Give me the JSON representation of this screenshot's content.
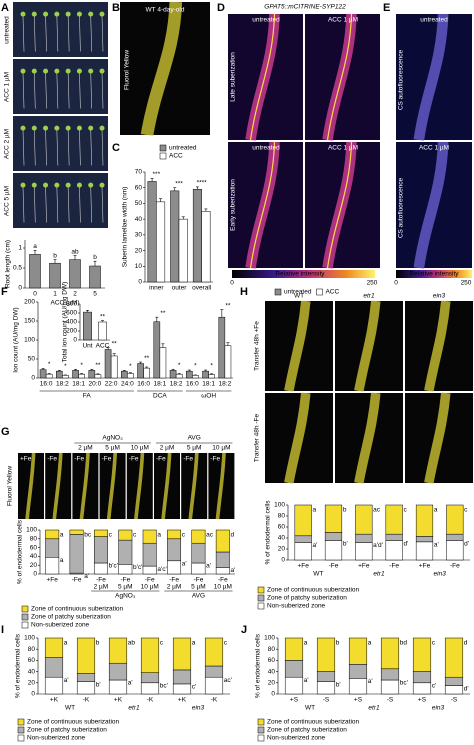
{
  "A": {
    "label": "A",
    "image_labels": [
      "untreated",
      "ACC 1 µM",
      "ACC 2 µM",
      "ACC 5 µM"
    ],
    "chart": {
      "type": "bar",
      "ylabel": "Root length (cm)",
      "xlabel": "ACC (µM)",
      "categories": [
        "0",
        "1",
        "2",
        "5"
      ],
      "values": [
        0.84,
        0.62,
        0.71,
        0.55
      ],
      "errors": [
        0.1,
        0.09,
        0.1,
        0.12
      ],
      "letters": [
        "a",
        "b",
        "ab",
        "b"
      ],
      "color": "#8c8c8c",
      "ylim": [
        0,
        1.2
      ],
      "yticks": [
        0,
        0.5,
        1
      ]
    }
  },
  "B": {
    "label": "B",
    "title": "WT 4-day-old",
    "ylabel": "Fluorol Yellow"
  },
  "C": {
    "label": "C",
    "chart": {
      "type": "bar",
      "ylabel": "Suberin lamellae width (nm)",
      "categories": [
        "inner",
        "outer",
        "overall"
      ],
      "series": [
        {
          "name": "untreated",
          "color": "#8c8c8c",
          "values": [
            64,
            58,
            59
          ],
          "errors": [
            2,
            2,
            1.5
          ]
        },
        {
          "name": "ACC",
          "color": "#ffffff",
          "values": [
            51,
            40,
            45
          ],
          "errors": [
            2,
            1.5,
            1.5
          ]
        }
      ],
      "stars": [
        "***",
        "***",
        "****"
      ],
      "ylim": [
        0,
        70
      ],
      "yticks": [
        0,
        10,
        20,
        30,
        40,
        50,
        60,
        70
      ]
    }
  },
  "D": {
    "label": "D",
    "title": "GPAT5::mCITRINE-SYP122",
    "column_labels": [
      "untreated",
      "ACC 1 µM"
    ],
    "row_labels": [
      "Late suberization",
      "Early suberization"
    ],
    "colorbar": {
      "label": "Relative intensity",
      "ticks": [
        "0",
        "250"
      ]
    }
  },
  "E": {
    "label": "E",
    "image_labels": [
      "untreated",
      "ACC 1 µM"
    ],
    "row_labels": [
      "CS autofluorescence",
      "CS autofluorescence"
    ],
    "colorbar": {
      "label": "Relative intensity",
      "ticks": [
        "0",
        "250"
      ]
    }
  },
  "F": {
    "label": "F",
    "chart": {
      "type": "bar",
      "ylabel": "Ion count (AU/mg DW)",
      "categories": [
        "16:0",
        "18:2",
        "18:1",
        "20:0",
        "22:0",
        "24:0",
        "16:0",
        "18:1",
        "18:2",
        "16:0",
        "18:1",
        "18:2"
      ],
      "group_labels": [
        "FA",
        "DCA",
        "ωOH"
      ],
      "series": [
        {
          "name": "untreated",
          "color": "#8c8c8c",
          "values": [
            22,
            18,
            20,
            20,
            75,
            18,
            38,
            148,
            20,
            18,
            18,
            160
          ],
          "errors": [
            3,
            2,
            3,
            3,
            5,
            2,
            4,
            12,
            3,
            3,
            3,
            20
          ]
        },
        {
          "name": "ACC",
          "color": "#ffffff",
          "values": [
            10,
            7,
            10,
            9,
            58,
            12,
            26,
            80,
            10,
            7,
            9,
            85
          ],
          "errors": [
            2,
            1,
            2,
            2,
            6,
            2,
            3,
            10,
            2,
            1,
            2,
            8
          ]
        }
      ],
      "stars": [
        "*",
        "*",
        "*",
        "**",
        "**",
        "*",
        "**",
        "**",
        "*",
        "*",
        "*",
        "**"
      ],
      "ylim": [
        0,
        200
      ],
      "yticks": [
        0,
        50,
        100,
        150,
        200
      ]
    },
    "inset": {
      "type": "bar",
      "ylabel": "Total ion count (AU/mg DW)",
      "categories": [
        "Unt",
        "ACC"
      ],
      "values": [
        620,
        400
      ],
      "errors": [
        40,
        30
      ],
      "colors": [
        "#8c8c8c",
        "#ffffff"
      ],
      "star": "**",
      "ylim": [
        0,
        800
      ],
      "yticks": [
        0,
        200,
        400,
        600,
        800
      ]
    }
  },
  "G": {
    "label": "G",
    "ylabel": "Fluorol Yellow",
    "image_labels": [
      "+Fe",
      "-Fe",
      "-Fe",
      "-Fe",
      "-Fe",
      "-Fe",
      "-Fe",
      "-Fe"
    ],
    "image_sublabels": [
      "2 µM",
      "5 µM",
      "10 µM",
      "2 µM",
      "5 µM",
      "10 µM"
    ],
    "image_group_labels": [
      "AgNO₃",
      "AVG"
    ],
    "chart": {
      "type": "stacked-bar",
      "ylabel": "% of endodermal cells",
      "categories": [
        "+Fe",
        "-Fe",
        "-Fe",
        "-Fe",
        "-Fe",
        "-Fe",
        "-Fe",
        "-Fe"
      ],
      "sublabels": [
        null,
        null,
        "2 µM",
        "5 µM",
        "10 µM",
        "2 µM",
        "5 µM",
        "10 µM"
      ],
      "group_labels": [
        "AgNO₃",
        "AVG"
      ],
      "series": [
        {
          "name": "Non-suberized zone",
          "color": "#ffffff",
          "values": [
            38,
            2,
            25,
            22,
            18,
            30,
            25,
            15
          ]
        },
        {
          "name": "Zone of patchy suberization",
          "color": "#b0b0b0",
          "values": [
            42,
            88,
            60,
            55,
            52,
            50,
            45,
            35
          ]
        },
        {
          "name": "Zone of continuous suberization",
          "color": "#f3dc2e",
          "values": [
            20,
            10,
            15,
            23,
            30,
            20,
            30,
            50
          ]
        }
      ],
      "letters_top": [
        "a",
        "bc",
        "c",
        "c",
        "a",
        "c",
        "ac",
        "d"
      ],
      "letters_bottom": [
        "a",
        "a'",
        "b'c'",
        "b'c'd'",
        "a'c'",
        "a'",
        "a'",
        "a'"
      ],
      "ylim": [
        0,
        100
      ],
      "yticks": [
        0,
        20,
        40,
        60,
        80,
        100
      ]
    }
  },
  "H": {
    "label": "H",
    "column_labels": [
      "WT",
      "etr1",
      "ein3"
    ],
    "row_labels": [
      "Transfer 48h +Fe",
      "Transfer 48h -Fe"
    ],
    "chart": {
      "type": "stacked-bar",
      "ylabel": "% of endodermal cells",
      "categories": [
        "+Fe",
        "-Fe",
        "+Fe",
        "-Fe",
        "+Fe",
        "-Fe"
      ],
      "group_labels": [
        "WT",
        "etr1",
        "ein3"
      ],
      "series": [
        {
          "name": "Non-suberized zone",
          "color": "#ffffff",
          "values": [
            32,
            35,
            32,
            35,
            33,
            35
          ]
        },
        {
          "name": "Zone of patchy suberization",
          "color": "#b0b0b0",
          "values": [
            12,
            15,
            15,
            12,
            10,
            12
          ]
        },
        {
          "name": "Zone of continuous suberization",
          "color": "#f3dc2e",
          "values": [
            56,
            50,
            53,
            53,
            57,
            53
          ]
        }
      ],
      "letters_top": [
        "a",
        "b",
        "ac",
        "c",
        "a",
        "c"
      ],
      "letters_bottom": [
        "a'",
        "b'",
        "a'd'",
        "d'",
        "a'",
        "d'"
      ],
      "ylim": [
        0,
        100
      ],
      "yticks": [
        0,
        20,
        40,
        60,
        80,
        100
      ]
    }
  },
  "I": {
    "label": "I",
    "chart": {
      "type": "stacked-bar",
      "ylabel": "% of endodermal cells",
      "categories": [
        "+K",
        "-K",
        "+K",
        "-K",
        "+K",
        "-K"
      ],
      "group_labels": [
        "WT",
        "etr1",
        "ein3"
      ],
      "series": [
        {
          "name": "Non-suberized zone",
          "color": "#ffffff",
          "values": [
            30,
            22,
            25,
            20,
            18,
            30
          ]
        },
        {
          "name": "Zone of patchy suberization",
          "color": "#b0b0b0",
          "values": [
            35,
            15,
            30,
            18,
            25,
            20
          ]
        },
        {
          "name": "Zone of continuous suberization",
          "color": "#f3dc2e",
          "values": [
            35,
            63,
            45,
            62,
            57,
            50
          ]
        }
      ],
      "letters_top": [
        "a",
        "b",
        "ab",
        "c",
        "a",
        "c"
      ],
      "letters_bottom": [
        "a'",
        "b'",
        "a'",
        "bc'",
        "c'",
        "ac'"
      ],
      "ylim": [
        0,
        100
      ],
      "yticks": [
        0,
        20,
        40,
        60,
        80,
        100
      ]
    }
  },
  "J": {
    "label": "J",
    "chart": {
      "type": "stacked-bar",
      "ylabel": "% of endodermal cells",
      "categories": [
        "+S",
        "-S",
        "+S",
        "-S",
        "+S",
        "-S"
      ],
      "group_labels": [
        "WT",
        "etr1",
        "ein3"
      ],
      "series": [
        {
          "name": "Non-suberized zone",
          "color": "#ffffff",
          "values": [
            30,
            22,
            28,
            25,
            20,
            15
          ]
        },
        {
          "name": "Zone of patchy suberization",
          "color": "#b0b0b0",
          "values": [
            30,
            18,
            25,
            20,
            20,
            15
          ]
        },
        {
          "name": "Zone of continuous suberization",
          "color": "#f3dc2e",
          "values": [
            40,
            60,
            47,
            55,
            60,
            70
          ]
        }
      ],
      "letters_top": [
        "a",
        "b",
        "a",
        "bd",
        "c",
        "d"
      ],
      "letters_bottom": [
        "a'",
        "b'",
        "a'",
        "bc'",
        "c'",
        "d'"
      ],
      "ylim": [
        0,
        100
      ],
      "yticks": [
        0,
        20,
        40,
        60,
        80,
        100
      ]
    }
  }
}
